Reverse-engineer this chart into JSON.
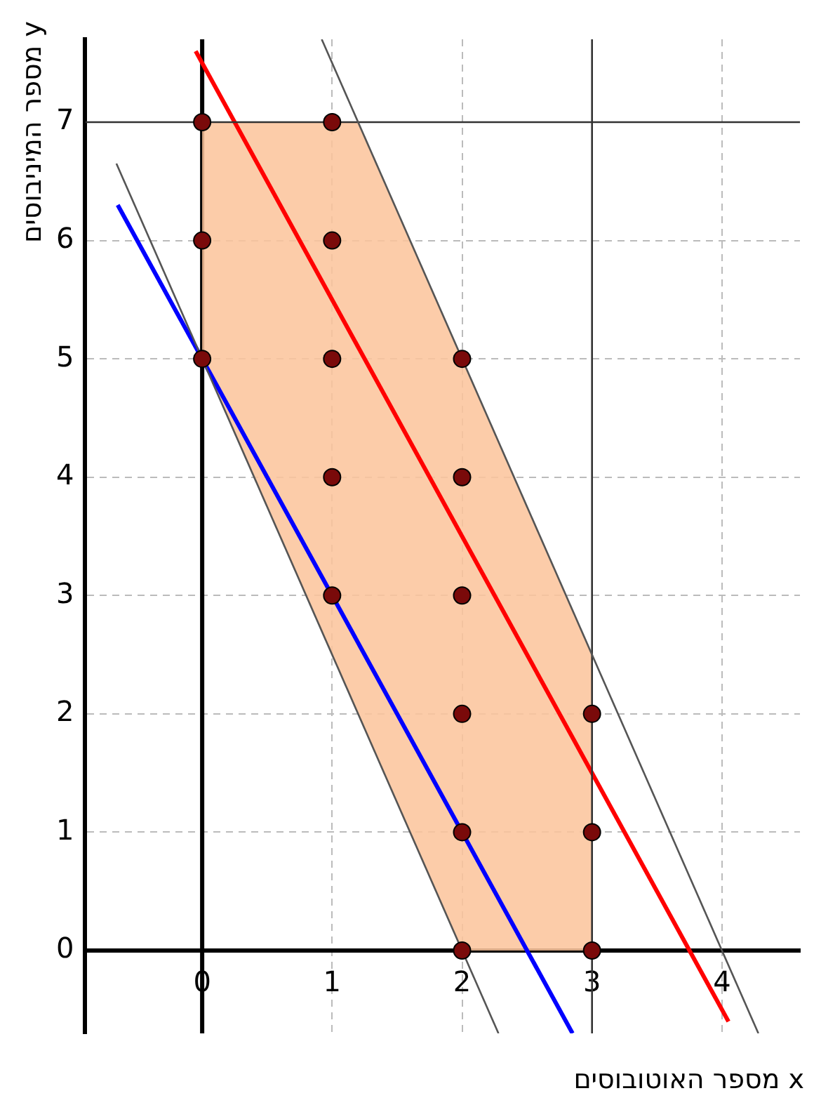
{
  "chart_data": {
    "type": "scatter",
    "xlabel": "x מספר האוטובוסים",
    "ylabel": "y מספר המיניבוסים",
    "xlim": [
      -0.9,
      4.6
    ],
    "ylim": [
      -0.7,
      7.7
    ],
    "xticks": [
      0,
      1,
      2,
      3,
      4
    ],
    "yticks": [
      0,
      1,
      2,
      3,
      4,
      5,
      6,
      7
    ],
    "grid": true,
    "legend": false,
    "series": [
      {
        "type": "area",
        "color": "#fcc49c",
        "x": [
          0,
          0,
          1.2,
          3,
          3,
          2,
          0
        ],
        "values": [
          5,
          7,
          7,
          2.5,
          0,
          0,
          5
        ]
      },
      {
        "type": "line",
        "color": "#555555",
        "x": [
          -0.66,
          2.28
        ],
        "values": [
          6.65,
          -0.7
        ]
      },
      {
        "type": "line",
        "color": "#555555",
        "x": [
          0.92,
          4.28
        ],
        "values": [
          7.7,
          -0.7
        ]
      },
      {
        "type": "line",
        "color": "#333333",
        "x": [
          3,
          3
        ],
        "values": [
          -0.7,
          7.7
        ]
      },
      {
        "type": "line",
        "color": "#333333",
        "x": [
          -0.9,
          4.6
        ],
        "values": [
          7,
          7
        ]
      },
      {
        "type": "line",
        "color": "#0000ff",
        "x": [
          -0.65,
          2.85
        ],
        "values": [
          6.3,
          -0.7
        ]
      },
      {
        "type": "line",
        "color": "#ff0000",
        "x": [
          -0.05,
          4.05
        ],
        "values": [
          7.6,
          -0.6
        ]
      },
      {
        "type": "scatter",
        "marker": "circle",
        "color": "#7a0a0a",
        "x": [
          0,
          0,
          0,
          1,
          1,
          1,
          1,
          1,
          2,
          2,
          2,
          2,
          2,
          2,
          3,
          3,
          3
        ],
        "values": [
          5,
          6,
          7,
          3,
          4,
          5,
          6,
          7,
          0,
          1,
          2,
          3,
          4,
          5,
          0,
          1,
          2
        ]
      }
    ]
  }
}
